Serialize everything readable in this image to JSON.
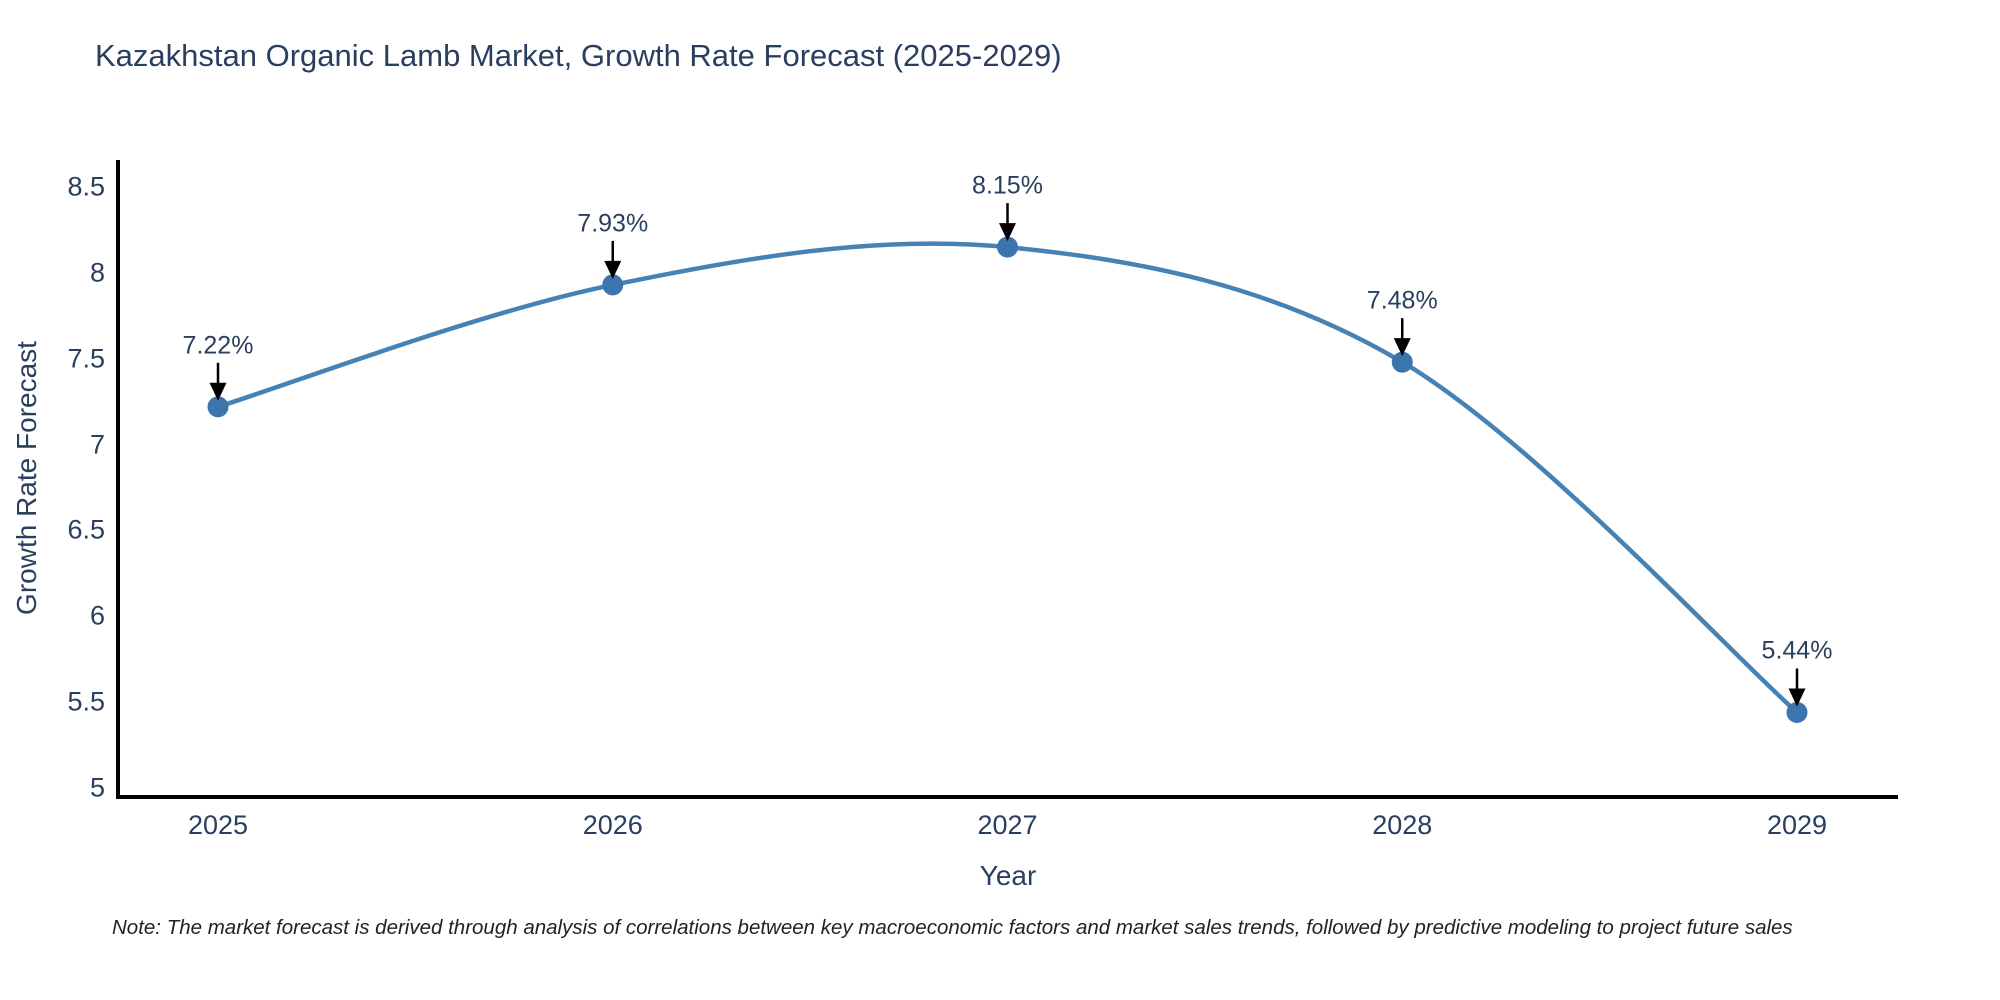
{
  "title": "Kazakhstan Organic Lamb Market, Growth Rate Forecast (2025-2029)",
  "footnote": "Note: The market forecast is derived through analysis of correlations between key macroeconomic factors and market sales trends, followed by predictive modeling to project future sales",
  "chart_data": {
    "type": "line",
    "line_shape": "spline",
    "title": "Kazakhstan Organic Lamb Market, Growth Rate Forecast (2025-2029)",
    "xlabel": "Year",
    "ylabel": "Growth Rate Forecast",
    "categories": [
      "2025",
      "2026",
      "2027",
      "2028",
      "2029"
    ],
    "values": [
      7.22,
      7.93,
      8.15,
      7.48,
      5.44
    ],
    "point_labels": [
      "7.22%",
      "7.93%",
      "8.15%",
      "7.48%",
      "5.44%"
    ],
    "ylim": [
      5,
      8.5
    ],
    "ytick_labels": [
      "5",
      "5.5",
      "6",
      "6.5",
      "7",
      "7.5",
      "8",
      "8.5"
    ],
    "ytick_values": [
      5,
      5.5,
      6,
      6.5,
      7,
      7.5,
      8,
      8.5
    ],
    "grid": false,
    "legend": "none",
    "colors": {
      "line": "#4682b4",
      "marker": "#3c74ae",
      "axis": "#000000",
      "text": "#2a3f5f",
      "annotation_arrow": "#000000"
    }
  }
}
